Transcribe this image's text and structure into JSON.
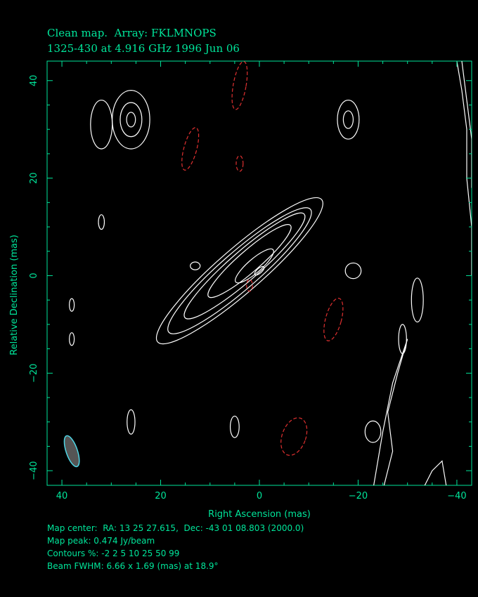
{
  "header": {
    "line1": "Clean map.  Array: FKLMNOPS",
    "line2": "1325-430 at 4.916 GHz 1996 Jun 06"
  },
  "footer": {
    "map_center": "Map center:  RA: 13 25 27.615,  Dec: -43 01 08.803 (2000.0)",
    "map_peak": "Map peak: 0.474 Jy/beam",
    "contours": "Contours %: -2 2 5 10 25 50 99",
    "beam": "Beam FWHM: 6.66 x 1.69 (mas) at 18.9°"
  },
  "colors": {
    "frame": "#00e59a",
    "positive_contour": "#ffffff",
    "negative_contour": "#e03030",
    "beam_edge": "#4fd6e6",
    "beam_fill": "#555555"
  },
  "chart_data": {
    "type": "contour",
    "xlabel": "Right Ascension  (mas)",
    "ylabel": "Relative Declination  (mas)",
    "xlim": [
      43,
      -43
    ],
    "ylim": [
      -43,
      44
    ],
    "xticks": [
      40,
      20,
      0,
      -20,
      -40
    ],
    "yticks": [
      40,
      20,
      0,
      -20,
      -40
    ],
    "xtick_labels": [
      "40",
      "20",
      "0",
      "−20",
      "−40"
    ],
    "ytick_labels": [
      "40",
      "20",
      "0",
      "−20",
      "−40"
    ],
    "contour_levels_percent": [
      -2,
      2,
      5,
      10,
      25,
      50,
      99
    ],
    "map_peak_jy_per_beam": 0.474,
    "beam": {
      "major_mas": 6.66,
      "minor_mas": 1.69,
      "pa_deg": 18.9,
      "center": [
        38,
        -36
      ]
    },
    "jet_components": [
      {
        "cx": 4,
        "cy": 1,
        "rx": 22,
        "ry": 4.5,
        "angle_deg": -41,
        "level": 2
      },
      {
        "cx": 4,
        "cy": 1,
        "rx": 19,
        "ry": 3.8,
        "angle_deg": -41,
        "level": 5
      },
      {
        "cx": 3,
        "cy": 2,
        "rx": 16,
        "ry": 3.0,
        "angle_deg": -41,
        "level": 10
      },
      {
        "cx": 2,
        "cy": 3,
        "rx": 11,
        "ry": 2.2,
        "angle_deg": -41,
        "level": 25
      },
      {
        "cx": 1,
        "cy": 2,
        "rx": 5,
        "ry": 1.4,
        "angle_deg": -41,
        "level": 50
      },
      {
        "cx": 0,
        "cy": 1,
        "rx": 1.2,
        "ry": 0.5,
        "angle_deg": -41,
        "level": 99
      }
    ],
    "positive_blobs": [
      {
        "cx": 32,
        "cy": 31,
        "rx": 2.2,
        "ry": 5,
        "angle_deg": 0
      },
      {
        "cx": 26,
        "cy": 32,
        "rx": 3.8,
        "ry": 6,
        "angle_deg": 0
      },
      {
        "cx": 26,
        "cy": 32,
        "rx": 2.2,
        "ry": 3.5,
        "angle_deg": 0
      },
      {
        "cx": 26,
        "cy": 32,
        "rx": 0.9,
        "ry": 1.5,
        "angle_deg": 0
      },
      {
        "cx": -18,
        "cy": 32,
        "rx": 2.2,
        "ry": 4,
        "angle_deg": 0
      },
      {
        "cx": -18,
        "cy": 32,
        "rx": 1.0,
        "ry": 1.8,
        "angle_deg": 0
      },
      {
        "cx": 32,
        "cy": 11,
        "rx": 0.6,
        "ry": 1.5,
        "angle_deg": 0
      },
      {
        "cx": 38,
        "cy": -6,
        "rx": 0.5,
        "ry": 1.3,
        "angle_deg": 0
      },
      {
        "cx": 38,
        "cy": -13,
        "rx": 0.5,
        "ry": 1.3,
        "angle_deg": 0
      },
      {
        "cx": -32,
        "cy": -5,
        "rx": 1.2,
        "ry": 4.5,
        "angle_deg": 0
      },
      {
        "cx": -29,
        "cy": -13,
        "rx": 0.8,
        "ry": 3,
        "angle_deg": 0
      },
      {
        "cx": 26,
        "cy": -30,
        "rx": 0.8,
        "ry": 2.5,
        "angle_deg": 0
      },
      {
        "cx": 5,
        "cy": -31,
        "rx": 0.9,
        "ry": 2.2,
        "angle_deg": 0
      },
      {
        "cx": -23,
        "cy": -32,
        "rx": 1.6,
        "ry": 2.2,
        "angle_deg": 0
      },
      {
        "cx": -19,
        "cy": 1,
        "rx": 1.6,
        "ry": 1.6,
        "angle_deg": 0
      },
      {
        "cx": 13,
        "cy": 2,
        "rx": 1.0,
        "ry": 0.8,
        "angle_deg": 0
      }
    ],
    "positive_paths": [
      [
        [
          -25,
          -44
        ],
        [
          -27,
          -36
        ],
        [
          -26,
          -28
        ],
        [
          -28,
          -20
        ],
        [
          -30,
          -13
        ],
        [
          -27,
          -22
        ],
        [
          -25,
          -32
        ],
        [
          -23,
          -44
        ]
      ],
      [
        [
          -40,
          44
        ],
        [
          -41,
          38
        ],
        [
          -42,
          30
        ],
        [
          -42,
          20
        ],
        [
          -43,
          10
        ],
        [
          -43,
          0
        ]
      ],
      [
        [
          -41,
          44
        ],
        [
          -42,
          36
        ],
        [
          -43,
          28
        ],
        [
          -43,
          18
        ]
      ],
      [
        [
          -33,
          -44
        ],
        [
          -35,
          -40
        ],
        [
          -37,
          -38
        ],
        [
          -38,
          -44
        ]
      ]
    ],
    "negative_blobs": [
      {
        "cx": 14,
        "cy": 26,
        "rx": 1.3,
        "ry": 4.5,
        "angle_deg": 15
      },
      {
        "cx": 4,
        "cy": 39,
        "rx": 1.3,
        "ry": 5,
        "angle_deg": 10
      },
      {
        "cx": 4,
        "cy": 23,
        "rx": 0.7,
        "ry": 1.6,
        "angle_deg": 0
      },
      {
        "cx": -15,
        "cy": -9,
        "rx": 1.6,
        "ry": 4.5,
        "angle_deg": 15
      },
      {
        "cx": -7,
        "cy": -33,
        "rx": 2.4,
        "ry": 4,
        "angle_deg": 20
      },
      {
        "cx": 2,
        "cy": -2,
        "rx": 0.6,
        "ry": 1.2,
        "angle_deg": 0
      }
    ]
  }
}
